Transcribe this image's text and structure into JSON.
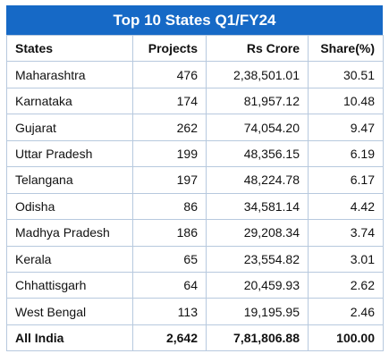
{
  "title": "Top 10 States Q1/FY24",
  "colors": {
    "header_bg": "#1669c6",
    "border": "#b7c9de",
    "text": "#111111"
  },
  "columns": [
    "States",
    "Projects",
    "Rs Crore",
    "Share(%)"
  ],
  "rows": [
    {
      "state": "Maharashtra",
      "projects": "476",
      "crore": "2,38,501.01",
      "share": "30.51"
    },
    {
      "state": "Karnataka",
      "projects": "174",
      "crore": "81,957.12",
      "share": "10.48"
    },
    {
      "state": "Gujarat",
      "projects": "262",
      "crore": "74,054.20",
      "share": "9.47"
    },
    {
      "state": "Uttar Pradesh",
      "projects": "199",
      "crore": "48,356.15",
      "share": "6.19"
    },
    {
      "state": "Telangana",
      "projects": "197",
      "crore": "48,224.78",
      "share": "6.17"
    },
    {
      "state": "Odisha",
      "projects": "86",
      "crore": "34,581.14",
      "share": "4.42"
    },
    {
      "state": "Madhya Pradesh",
      "projects": "186",
      "crore": "29,208.34",
      "share": "3.74"
    },
    {
      "state": "Kerala",
      "projects": "65",
      "crore": "23,554.82",
      "share": "3.01"
    },
    {
      "state": "Chhattisgarh",
      "projects": "64",
      "crore": "20,459.93",
      "share": "2.62"
    },
    {
      "state": "West Bengal",
      "projects": "113",
      "crore": "19,195.95",
      "share": "2.46"
    }
  ],
  "total": {
    "state": "All India",
    "projects": "2,642",
    "crore": "7,81,806.88",
    "share": "100.00"
  }
}
